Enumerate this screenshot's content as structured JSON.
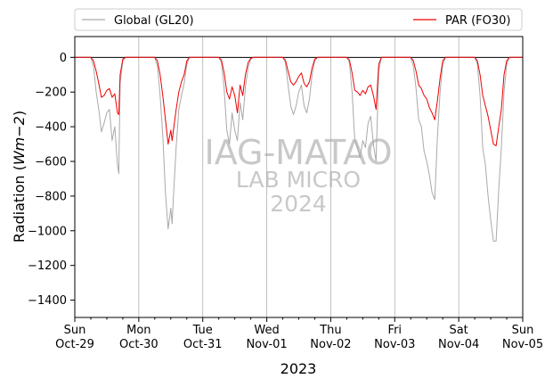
{
  "chart_data": {
    "type": "line",
    "title": "",
    "xlabel": "2023",
    "ylabel": "Radiation ($Wm{-2}$)",
    "ylabel_parts": {
      "prefix": "Radiation (",
      "math": "Wm−2",
      "suffix": ")"
    },
    "ylim": [
      -1500,
      120
    ],
    "y_ticks": [
      0,
      -200,
      -400,
      -600,
      -800,
      -1000,
      -1200,
      -1400
    ],
    "x_ticks": [
      {
        "day": "Sun",
        "date": "Oct-29"
      },
      {
        "day": "Mon",
        "date": "Oct-30"
      },
      {
        "day": "Tue",
        "date": "Oct-31"
      },
      {
        "day": "Wed",
        "date": "Nov-01"
      },
      {
        "day": "Thu",
        "date": "Nov-02"
      },
      {
        "day": "Fri",
        "date": "Nov-03"
      },
      {
        "day": "Sat",
        "date": "Nov-04"
      },
      {
        "day": "Sun",
        "date": "Nov-05"
      }
    ],
    "xlim": [
      "2023-10-29 00:00",
      "2023-11-05 00:00"
    ],
    "grid": "vertical",
    "zero_line": true,
    "legend": {
      "placement": "top, outside plot"
    },
    "watermark": [
      "IAG-MATAO",
      "LAB MICRO",
      "2024"
    ],
    "series": [
      {
        "name": "Global (GL20)",
        "color": "#a9a9a9",
        "x": [
          "2023-10-29 00:00",
          "2023-10-29 06:00",
          "2023-10-29 07:00",
          "2023-10-29 08:00",
          "2023-10-29 09:00",
          "2023-10-29 10:00",
          "2023-10-29 11:00",
          "2023-10-29 12:00",
          "2023-10-29 13:00",
          "2023-10-29 14:00",
          "2023-10-29 15:00",
          "2023-10-29 16:00",
          "2023-10-29 16:30",
          "2023-10-29 17:00",
          "2023-10-29 18:00",
          "2023-10-29 19:00",
          "2023-10-30 06:00",
          "2023-10-30 07:00",
          "2023-10-30 08:00",
          "2023-10-30 09:00",
          "2023-10-30 10:00",
          "2023-10-30 11:00",
          "2023-10-30 12:00",
          "2023-10-30 12:30",
          "2023-10-30 13:00",
          "2023-10-30 14:00",
          "2023-10-30 15:00",
          "2023-10-30 16:00",
          "2023-10-30 17:00",
          "2023-10-30 18:00",
          "2023-10-30 19:00",
          "2023-10-31 06:00",
          "2023-10-31 07:00",
          "2023-10-31 08:00",
          "2023-10-31 09:00",
          "2023-10-31 10:00",
          "2023-10-31 11:00",
          "2023-10-31 12:00",
          "2023-10-31 13:00",
          "2023-10-31 14:00",
          "2023-10-31 15:00",
          "2023-10-31 16:00",
          "2023-10-31 17:00",
          "2023-10-31 18:00",
          "2023-10-31 19:00",
          "2023-11-01 06:00",
          "2023-11-01 07:00",
          "2023-11-01 08:00",
          "2023-11-01 09:00",
          "2023-11-01 10:00",
          "2023-11-01 11:00",
          "2023-11-01 12:00",
          "2023-11-01 13:00",
          "2023-11-01 14:00",
          "2023-11-01 15:00",
          "2023-11-01 16:00",
          "2023-11-01 17:00",
          "2023-11-01 18:00",
          "2023-11-01 19:00",
          "2023-11-02 06:00",
          "2023-11-02 07:00",
          "2023-11-02 08:00",
          "2023-11-02 09:00",
          "2023-11-02 10:00",
          "2023-11-02 11:00",
          "2023-11-02 12:00",
          "2023-11-02 13:00",
          "2023-11-02 14:00",
          "2023-11-02 15:00",
          "2023-11-02 16:00",
          "2023-11-02 17:00",
          "2023-11-02 18:00",
          "2023-11-02 19:00",
          "2023-11-03 06:00",
          "2023-11-03 07:00",
          "2023-11-03 08:00",
          "2023-11-03 09:00",
          "2023-11-03 10:00",
          "2023-11-03 11:00",
          "2023-11-03 12:00",
          "2023-11-03 13:00",
          "2023-11-03 14:00",
          "2023-11-03 15:00",
          "2023-11-03 16:00",
          "2023-11-03 17:00",
          "2023-11-03 18:00",
          "2023-11-03 19:00",
          "2023-11-04 06:00",
          "2023-11-04 07:00",
          "2023-11-04 08:00",
          "2023-11-04 09:00",
          "2023-11-04 10:00",
          "2023-11-04 11:00",
          "2023-11-04 12:00",
          "2023-11-04 13:00",
          "2023-11-04 14:00",
          "2023-11-04 15:00",
          "2023-11-04 16:00",
          "2023-11-04 17:00",
          "2023-11-04 18:00",
          "2023-11-04 19:00",
          "2023-11-05 00:00"
        ],
        "y": [
          0,
          0,
          -50,
          -200,
          -300,
          -430,
          -380,
          -320,
          -300,
          -480,
          -400,
          -620,
          -670,
          -150,
          -20,
          0,
          0,
          -50,
          -220,
          -450,
          -780,
          -990,
          -870,
          -960,
          -800,
          -520,
          -300,
          -220,
          -150,
          -40,
          0,
          0,
          -30,
          -180,
          -420,
          -500,
          -320,
          -420,
          -480,
          -260,
          -360,
          -170,
          -60,
          -10,
          0,
          0,
          -30,
          -160,
          -280,
          -330,
          -280,
          -200,
          -160,
          -280,
          -320,
          -240,
          -100,
          -20,
          0,
          0,
          -30,
          -200,
          -480,
          -520,
          -580,
          -480,
          -520,
          -380,
          -340,
          -500,
          -600,
          -80,
          0,
          0,
          -50,
          -180,
          -360,
          -400,
          -540,
          -600,
          -680,
          -780,
          -820,
          -460,
          -200,
          -40,
          0,
          0,
          -40,
          -220,
          -520,
          -620,
          -800,
          -940,
          -1060,
          -1060,
          -760,
          -520,
          -200,
          -40,
          0,
          0
        ]
      },
      {
        "name": "PAR (FO30)",
        "color": "#ee0000",
        "x": [
          "2023-10-29 00:00",
          "2023-10-29 06:00",
          "2023-10-29 07:00",
          "2023-10-29 08:00",
          "2023-10-29 09:00",
          "2023-10-29 10:00",
          "2023-10-29 11:00",
          "2023-10-29 12:00",
          "2023-10-29 13:00",
          "2023-10-29 14:00",
          "2023-10-29 15:00",
          "2023-10-29 16:00",
          "2023-10-29 16:30",
          "2023-10-29 17:00",
          "2023-10-29 18:00",
          "2023-10-29 19:00",
          "2023-10-30 06:00",
          "2023-10-30 07:00",
          "2023-10-30 08:00",
          "2023-10-30 09:00",
          "2023-10-30 10:00",
          "2023-10-30 11:00",
          "2023-10-30 12:00",
          "2023-10-30 12:30",
          "2023-10-30 13:00",
          "2023-10-30 14:00",
          "2023-10-30 15:00",
          "2023-10-30 16:00",
          "2023-10-30 17:00",
          "2023-10-30 18:00",
          "2023-10-30 19:00",
          "2023-10-31 06:00",
          "2023-10-31 07:00",
          "2023-10-31 08:00",
          "2023-10-31 09:00",
          "2023-10-31 10:00",
          "2023-10-31 11:00",
          "2023-10-31 12:00",
          "2023-10-31 13:00",
          "2023-10-31 14:00",
          "2023-10-31 15:00",
          "2023-10-31 16:00",
          "2023-10-31 17:00",
          "2023-10-31 18:00",
          "2023-10-31 19:00",
          "2023-11-01 06:00",
          "2023-11-01 07:00",
          "2023-11-01 08:00",
          "2023-11-01 09:00",
          "2023-11-01 10:00",
          "2023-11-01 11:00",
          "2023-11-01 12:00",
          "2023-11-01 13:00",
          "2023-11-01 14:00",
          "2023-11-01 15:00",
          "2023-11-01 16:00",
          "2023-11-01 17:00",
          "2023-11-01 18:00",
          "2023-11-01 19:00",
          "2023-11-02 06:00",
          "2023-11-02 07:00",
          "2023-11-02 08:00",
          "2023-11-02 09:00",
          "2023-11-02 10:00",
          "2023-11-02 11:00",
          "2023-11-02 12:00",
          "2023-11-02 13:00",
          "2023-11-02 14:00",
          "2023-11-02 15:00",
          "2023-11-02 16:00",
          "2023-11-02 17:00",
          "2023-11-02 18:00",
          "2023-11-02 19:00",
          "2023-11-03 06:00",
          "2023-11-03 07:00",
          "2023-11-03 08:00",
          "2023-11-03 09:00",
          "2023-11-03 10:00",
          "2023-11-03 11:00",
          "2023-11-03 12:00",
          "2023-11-03 13:00",
          "2023-11-03 14:00",
          "2023-11-03 15:00",
          "2023-11-03 16:00",
          "2023-11-03 17:00",
          "2023-11-03 18:00",
          "2023-11-03 19:00",
          "2023-11-04 06:00",
          "2023-11-04 07:00",
          "2023-11-04 08:00",
          "2023-11-04 09:00",
          "2023-11-04 10:00",
          "2023-11-04 11:00",
          "2023-11-04 12:00",
          "2023-11-04 13:00",
          "2023-11-04 14:00",
          "2023-11-04 15:00",
          "2023-11-04 16:00",
          "2023-11-04 17:00",
          "2023-11-04 18:00",
          "2023-11-04 19:00",
          "2023-11-05 00:00"
        ],
        "y": [
          0,
          0,
          -20,
          -80,
          -150,
          -230,
          -220,
          -190,
          -180,
          -230,
          -210,
          -320,
          -330,
          -100,
          -10,
          0,
          0,
          -20,
          -100,
          -220,
          -360,
          -500,
          -420,
          -480,
          -420,
          -300,
          -200,
          -140,
          -100,
          -20,
          0,
          0,
          -15,
          -90,
          -200,
          -240,
          -170,
          -220,
          -320,
          -160,
          -220,
          -100,
          -30,
          -5,
          0,
          0,
          -15,
          -80,
          -140,
          -160,
          -140,
          -110,
          -90,
          -150,
          -170,
          -140,
          -60,
          -10,
          0,
          0,
          -15,
          -90,
          -190,
          -200,
          -220,
          -190,
          -210,
          -170,
          -160,
          -220,
          -300,
          -40,
          0,
          0,
          -20,
          -80,
          -160,
          -180,
          -220,
          -240,
          -290,
          -320,
          -360,
          -250,
          -120,
          -20,
          0,
          0,
          -20,
          -100,
          -220,
          -280,
          -340,
          -420,
          -500,
          -510,
          -400,
          -300,
          -100,
          -20,
          0,
          0
        ]
      }
    ]
  }
}
